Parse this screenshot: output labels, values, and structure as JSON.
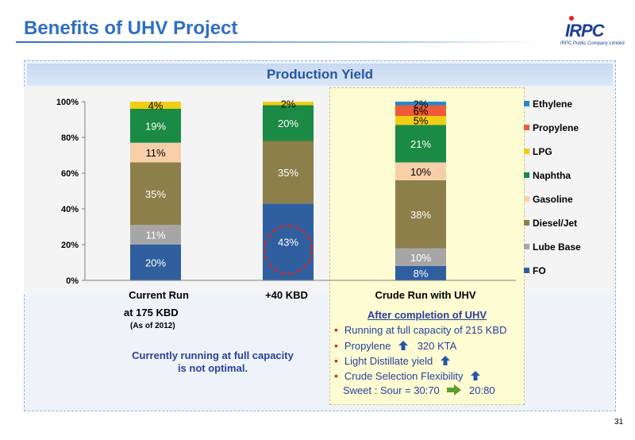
{
  "slide": {
    "title": "Benefits of UHV Project",
    "page_number": "31"
  },
  "logo": {
    "word": "IRPC",
    "sub": "IRPC Public Company Limited"
  },
  "panel": {
    "title": "Production Yield"
  },
  "chart_data": {
    "type": "bar",
    "stacked": true,
    "y_axis": {
      "ticks": [
        "0%",
        "20%",
        "40%",
        "60%",
        "80%",
        "100%"
      ],
      "ylim": [
        0,
        100
      ]
    },
    "categories": [
      "Current Run",
      "+40 KBD",
      "Crude Run with UHV"
    ],
    "series": [
      {
        "name": "FO",
        "color": "#2f5f9e",
        "values": [
          20,
          43,
          8
        ],
        "labels": [
          "20%",
          "43%",
          "8%"
        ]
      },
      {
        "name": "Lube Base",
        "color": "#a6a6a6",
        "values": [
          11,
          0,
          10
        ],
        "labels": [
          "11%",
          "",
          "10%"
        ]
      },
      {
        "name": "Diesel/Jet",
        "color": "#8c7f4a",
        "values": [
          35,
          35,
          38
        ],
        "labels": [
          "35%",
          "35%",
          "38%"
        ]
      },
      {
        "name": "Gasoline",
        "color": "#f9cfaa",
        "values": [
          11,
          0,
          10
        ],
        "labels": [
          "11%",
          "",
          "10%"
        ]
      },
      {
        "name": "Naphtha",
        "color": "#1a8a44",
        "values": [
          19,
          20,
          21
        ],
        "labels": [
          "19%",
          "20%",
          "21%"
        ]
      },
      {
        "name": "LPG",
        "color": "#f2cd16",
        "values": [
          4,
          2,
          5
        ],
        "labels": [
          "4%",
          "2%",
          "5%"
        ]
      },
      {
        "name": "Propylene",
        "color": "#ef5a37",
        "values": [
          0,
          0,
          6
        ],
        "labels": [
          "",
          "",
          "6%"
        ]
      },
      {
        "name": "Ethylene",
        "color": "#1f8bd0",
        "values": [
          0,
          0,
          2
        ],
        "labels": [
          "",
          "",
          "2%"
        ]
      }
    ],
    "legend": {
      "placement": "right",
      "order": [
        "Ethylene",
        "Propylene",
        "LPG",
        "Naphtha",
        "Gasoline",
        "Diesel/Jet",
        "Lube Base",
        "FO"
      ]
    },
    "highlight": {
      "category": "+40 KBD",
      "series": "FO",
      "style": "red dashed circle"
    }
  },
  "current_run": {
    "label_line2": "at 175 KBD",
    "as_of": "(As of 2012)",
    "note_line1": "Currently running at full capacity",
    "note_line2": "is not optimal."
  },
  "uhv": {
    "heading": "After completion of UHV",
    "items": [
      "Running at full capacity of 215 KBD",
      "Propylene",
      "Light Distillate yield",
      "Crude Selection Flexibility"
    ],
    "propylene_value": "320 KTA",
    "sweet_sour_from": "Sweet : Sour = 30:70",
    "sweet_sour_to": "20:80"
  },
  "colors": {
    "title_blue": "#2f6fc4",
    "text_blue": "#2a3f9e",
    "bullet_red": "#e2231a",
    "arrow_green": "#5aa02c",
    "up_arrow_blue": "#2556a8"
  }
}
